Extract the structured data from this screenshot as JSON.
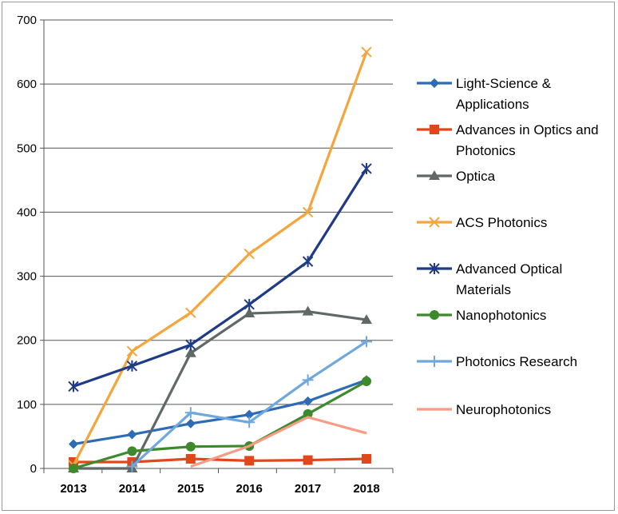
{
  "chart_data": {
    "type": "line",
    "title": "",
    "xlabel": "",
    "ylabel": "",
    "x": [
      "2013",
      "2014",
      "2015",
      "2016",
      "2017",
      "2018"
    ],
    "ylim": [
      0,
      700
    ],
    "yticks": [
      0,
      100,
      200,
      300,
      400,
      500,
      600,
      700
    ],
    "grid": "horizontal",
    "legend_position": "right",
    "series": [
      {
        "name": "Light-Science & Applications",
        "legend_lines": [
          "Light-Science &",
          "Applications"
        ],
        "color": "#2e6bb5",
        "marker": "diamond",
        "values": [
          38,
          53,
          70,
          84,
          105,
          138
        ]
      },
      {
        "name": "Advances in Optics and Photonics",
        "legend_lines": [
          "Advances in Optics and",
          "Photonics"
        ],
        "color": "#e0471b",
        "marker": "square",
        "values": [
          10,
          10,
          15,
          12,
          13,
          15
        ]
      },
      {
        "name": "Optica",
        "legend_lines": [
          "Optica"
        ],
        "color": "#606868",
        "marker": "triangle",
        "values": [
          0,
          0,
          180,
          242,
          245,
          232
        ]
      },
      {
        "name": "ACS Photonics",
        "legend_lines": [
          "ACS Photonics"
        ],
        "color": "#f4a53b",
        "marker": "x",
        "values": [
          5,
          183,
          243,
          335,
          400,
          650
        ]
      },
      {
        "name": "Advanced Optical Materials",
        "legend_lines": [
          "Advanced Optical",
          "Materials"
        ],
        "color": "#1f3b87",
        "marker": "star",
        "values": [
          128,
          160,
          193,
          256,
          323,
          468
        ]
      },
      {
        "name": "Nanophotonics",
        "legend_lines": [
          "Nanophotonics"
        ],
        "color": "#3d8a2d",
        "marker": "circle",
        "values": [
          0,
          27,
          34,
          35,
          85,
          136
        ]
      },
      {
        "name": "Photonics Research",
        "legend_lines": [
          "Photonics Research"
        ],
        "color": "#6fa8dc",
        "marker": "plus",
        "values": [
          null,
          3,
          87,
          72,
          138,
          198
        ]
      },
      {
        "name": "Neurophotonics",
        "legend_lines": [
          "Neurophotonics"
        ],
        "color": "#f79b85",
        "marker": "none",
        "values": [
          null,
          null,
          3,
          35,
          80,
          55
        ]
      }
    ]
  }
}
